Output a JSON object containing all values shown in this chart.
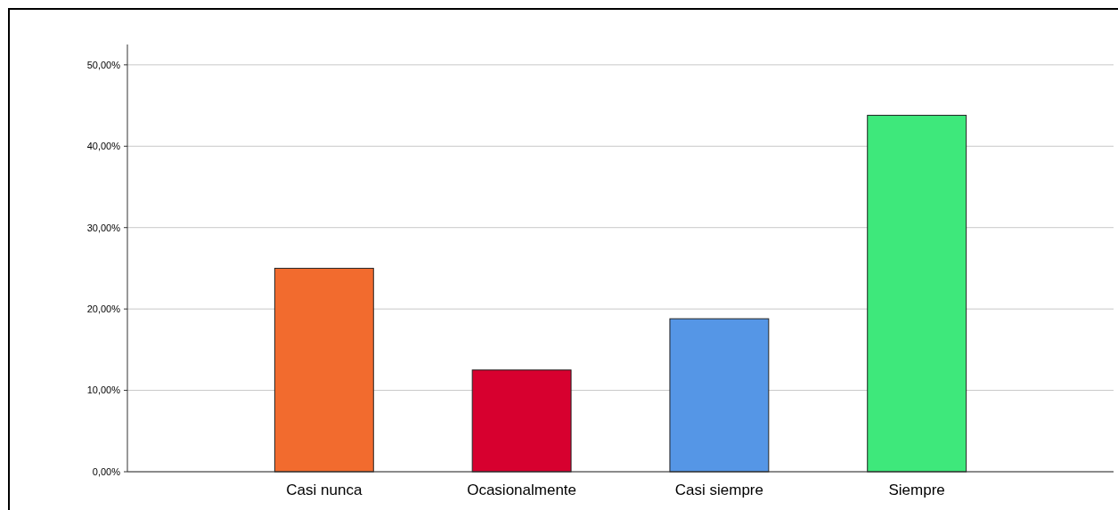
{
  "chart_data": {
    "type": "bar",
    "categories": [
      "Casi nunca",
      "Ocasionalmente",
      "Casi siempre",
      "Siempre"
    ],
    "values": [
      25,
      12.5,
      18.8,
      43.8
    ],
    "colors": [
      "#f26b2e",
      "#d7002f",
      "#5596e6",
      "#3ee87b"
    ],
    "ylim": [
      0,
      52.5
    ],
    "yticks": [
      {
        "value": 0,
        "label": "0,00%"
      },
      {
        "value": 10,
        "label": "10,00%"
      },
      {
        "value": 20,
        "label": "20,00%"
      },
      {
        "value": 30,
        "label": "30,00%"
      },
      {
        "value": 40,
        "label": "40,00%"
      },
      {
        "value": 50,
        "label": "50,00%"
      }
    ],
    "grid": "y"
  }
}
